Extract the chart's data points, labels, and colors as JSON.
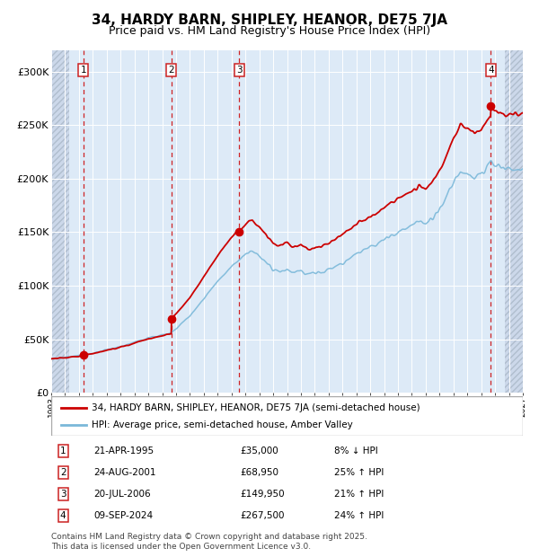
{
  "title": "34, HARDY BARN, SHIPLEY, HEANOR, DE75 7JA",
  "subtitle": "Price paid vs. HM Land Registry's House Price Index (HPI)",
  "ylim": [
    0,
    320000
  ],
  "xlim_start": 1993,
  "xlim_end": 2027,
  "yticks": [
    0,
    50000,
    100000,
    150000,
    200000,
    250000,
    300000
  ],
  "ytick_labels": [
    "£0",
    "£50K",
    "£100K",
    "£150K",
    "£200K",
    "£250K",
    "£300K"
  ],
  "sales": [
    {
      "date_x": 1995.31,
      "price": 35000,
      "label": "1"
    },
    {
      "date_x": 2001.65,
      "price": 68950,
      "label": "2"
    },
    {
      "date_x": 2006.55,
      "price": 149950,
      "label": "3"
    },
    {
      "date_x": 2024.69,
      "price": 267500,
      "label": "4"
    }
  ],
  "hpi_line_color": "#7ab8d9",
  "price_line_color": "#cc0000",
  "dashed_line_color": "#cc0000",
  "plot_bg_color": "#ddeaf7",
  "hatch_bg_color": "#ccd8ea",
  "grid_color": "#ffffff",
  "legend_entries": [
    "34, HARDY BARN, SHIPLEY, HEANOR, DE75 7JA (semi-detached house)",
    "HPI: Average price, semi-detached house, Amber Valley"
  ],
  "table_rows": [
    {
      "num": "1",
      "date": "21-APR-1995",
      "price": "£35,000",
      "change": "8% ↓ HPI"
    },
    {
      "num": "2",
      "date": "24-AUG-2001",
      "price": "£68,950",
      "change": "25% ↑ HPI"
    },
    {
      "num": "3",
      "date": "20-JUL-2006",
      "price": "£149,950",
      "change": "21% ↑ HPI"
    },
    {
      "num": "4",
      "date": "09-SEP-2024",
      "price": "£267,500",
      "change": "24% ↑ HPI"
    }
  ],
  "footnote": "Contains HM Land Registry data © Crown copyright and database right 2025.\nThis data is licensed under the Open Government Licence v3.0.",
  "title_fontsize": 11,
  "subtitle_fontsize": 9
}
